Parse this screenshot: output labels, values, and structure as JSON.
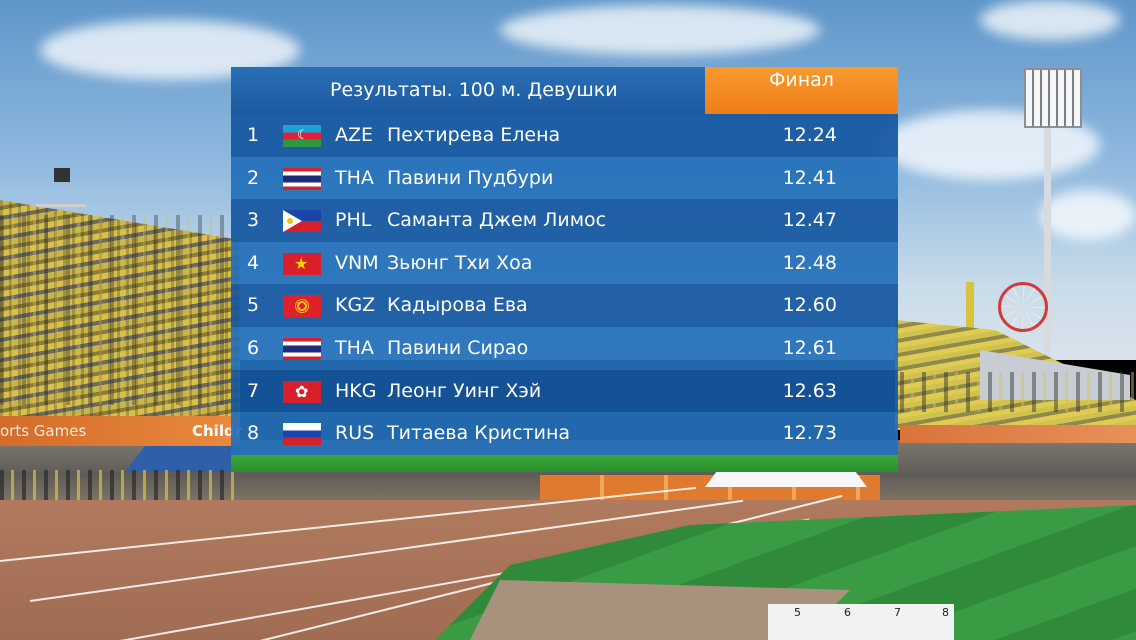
{
  "board": {
    "title": "Результаты. 100 м. Девушки",
    "status": "Финал",
    "colors": {
      "header_blue": "#1c5aa0",
      "status_orange": "#f07d18",
      "row_dark": "#1657a0",
      "row_light": "#2470b9",
      "footer_green": "#2a8e2e"
    },
    "results": [
      {
        "rank": "1",
        "flag": "azerbaijan-flag-icon",
        "code": "AZE",
        "name": "Пехтирева Елена",
        "time": "12.24"
      },
      {
        "rank": "2",
        "flag": "thailand-flag-icon",
        "code": "THA",
        "name": "Павини Пудбури",
        "time": "12.41"
      },
      {
        "rank": "3",
        "flag": "philippines-flag-icon",
        "code": "PHL",
        "name": "Саманта Джем Лимос",
        "time": "12.47"
      },
      {
        "rank": "4",
        "flag": "vietnam-flag-icon",
        "code": "VNM",
        "name": "Зьюнг Тхи Хоа",
        "time": "12.48"
      },
      {
        "rank": "5",
        "flag": "kyrgyzstan-flag-icon",
        "code": "KGZ",
        "name": "Кадырова Ева",
        "time": "12.60"
      },
      {
        "rank": "6",
        "flag": "thailand-flag-icon",
        "code": "THA",
        "name": "Павини Сирао",
        "time": "12.61"
      },
      {
        "rank": "7",
        "flag": "hong-kong-flag-icon",
        "code": "HKG",
        "name": "Леонг Уинг Хэй",
        "time": "12.63"
      },
      {
        "rank": "8",
        "flag": "russia-flag-icon",
        "code": "RUS",
        "name": "Титаева Кристина",
        "time": "12.73"
      }
    ]
  },
  "background": {
    "banner_left_text": "orts Games",
    "banner_left_text2": "Childr",
    "scale_numbers": [
      "5",
      "6",
      "7",
      "8"
    ]
  }
}
